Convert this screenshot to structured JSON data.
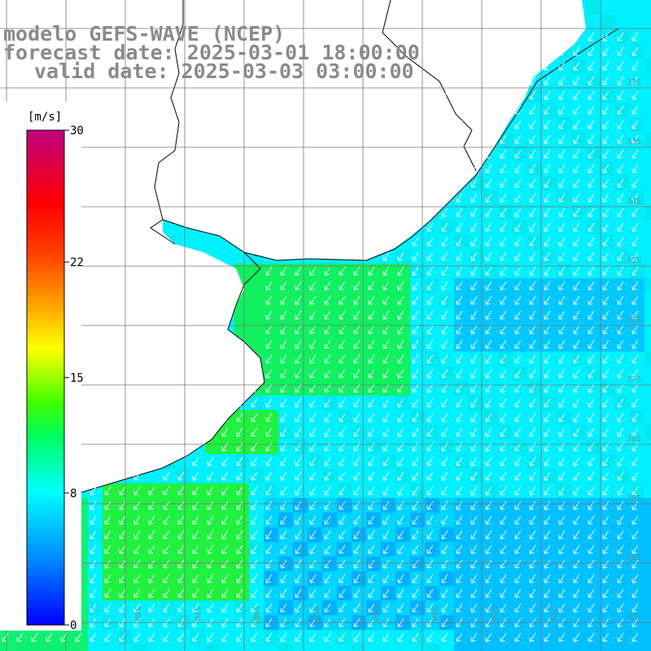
{
  "title": {
    "line1": "modelo GEFS-WAVE (NCEP)",
    "line2": "forecast date: 2025-03-01 18:00:00",
    "line3": "valid date: 2025-03-03 03:00:00"
  },
  "colorbar": {
    "unit": "[m/s]",
    "min": 0,
    "max": 30,
    "ticks": [
      "30",
      "22",
      "15",
      "8",
      "0"
    ],
    "tick_values": [
      30,
      22,
      15,
      8,
      0
    ],
    "colors": [
      "#0000ff",
      "#00a0ff",
      "#00ffff",
      "#00ff40",
      "#80ff00",
      "#ffff00",
      "#ff8000",
      "#ff0000",
      "#c00080"
    ]
  },
  "lat_labels": [
    "32S",
    "33S",
    "34S",
    "35S",
    "36S",
    "37S",
    "38S",
    "39S",
    "40S",
    "41S"
  ],
  "lon_labels": [
    "60W",
    "59W",
    "58W",
    "57W",
    "56W",
    "55W",
    "54W",
    "53W",
    "52W",
    "51W"
  ],
  "wind_direction": "arrows point toward the southwest"
}
